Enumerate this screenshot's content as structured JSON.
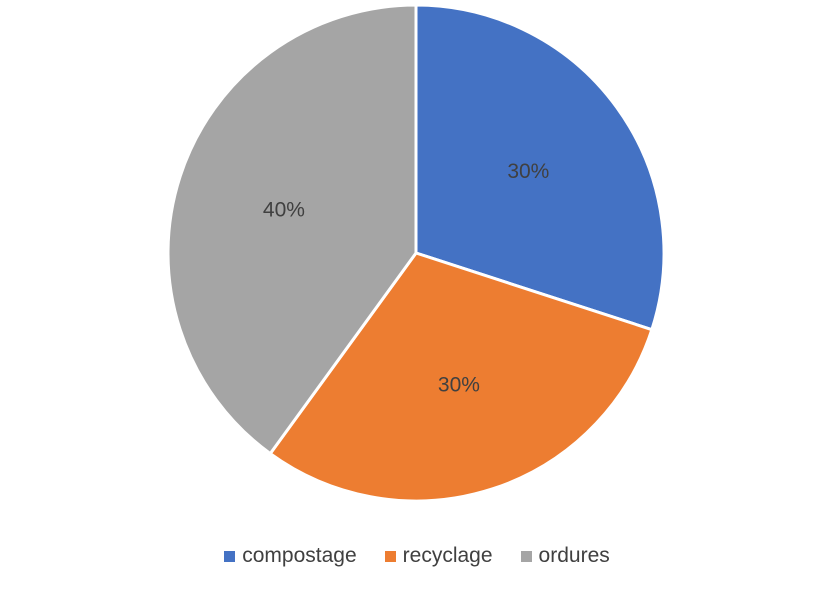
{
  "chart_data": {
    "type": "pie",
    "title": "",
    "categories": [
      "compostage",
      "recyclage",
      "ordures"
    ],
    "values": [
      30,
      30,
      40
    ],
    "data_labels": [
      "30%",
      "30%",
      "40%"
    ],
    "colors": [
      "#4472C4",
      "#ED7D31",
      "#A5A5A5"
    ],
    "start_angle_deg": 0,
    "direction": "clockwise",
    "legend_position": "bottom"
  }
}
